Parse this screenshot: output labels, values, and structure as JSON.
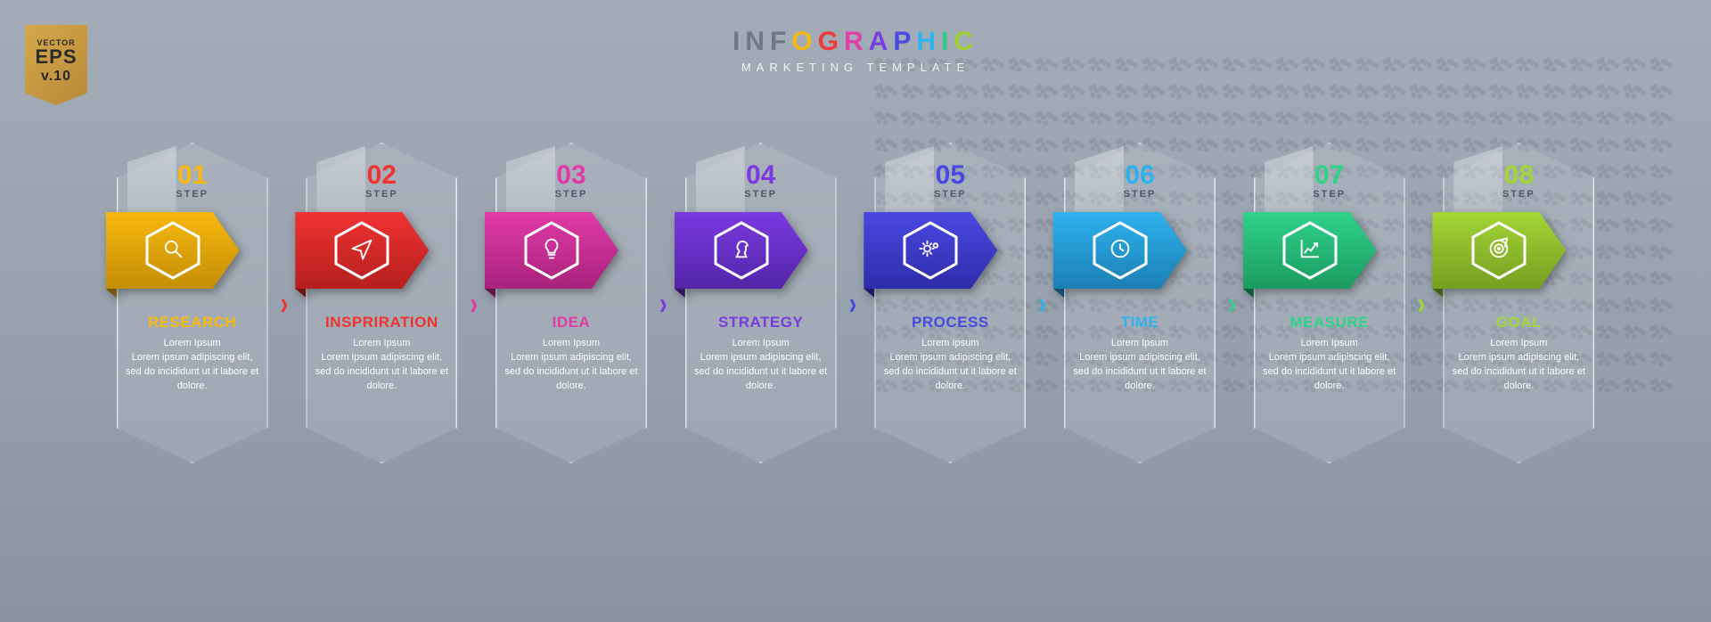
{
  "badge": {
    "vector": "VECTOR",
    "eps": "EPS",
    "ver": "v.10"
  },
  "header": {
    "title_letters": [
      {
        "ch": "I",
        "c": "#707884"
      },
      {
        "ch": "N",
        "c": "#707884"
      },
      {
        "ch": "F",
        "c": "#707884"
      },
      {
        "ch": "O",
        "c": "#f5b816"
      },
      {
        "ch": "G",
        "c": "#ef3b3b"
      },
      {
        "ch": "R",
        "c": "#e23fa8"
      },
      {
        "ch": "A",
        "c": "#7a3fe2"
      },
      {
        "ch": "P",
        "c": "#4a4ae2"
      },
      {
        "ch": "H",
        "c": "#2fb4ee"
      },
      {
        "ch": "I",
        "c": "#35c98a"
      },
      {
        "ch": "C",
        "c": "#9ed033"
      }
    ],
    "subtitle": "MARKETING  TEMPLATE"
  },
  "step_word": "STEP",
  "lorem": "Lorem Ipsum\nLorem ipsum adipiscing elit, sed do incididunt ut it labore et dolore.",
  "steps": [
    {
      "num": "01",
      "title": "RESEARCH",
      "color": "#f7b80f",
      "dark": "#c48e06",
      "icon": "search"
    },
    {
      "num": "02",
      "title": "INSPRIRATION",
      "color": "#ef3332",
      "dark": "#b51f1e",
      "icon": "plane"
    },
    {
      "num": "03",
      "title": "IDEA",
      "color": "#e13aa7",
      "dark": "#a8227b",
      "icon": "bulb"
    },
    {
      "num": "04",
      "title": "STRATEGY",
      "color": "#7a3ae0",
      "dark": "#5424a8",
      "icon": "knight"
    },
    {
      "num": "05",
      "title": "PROCESS",
      "color": "#4a48e2",
      "dark": "#2e2ca8",
      "icon": "gears"
    },
    {
      "num": "06",
      "title": "TIME",
      "color": "#2fb1ee",
      "dark": "#1a7fb3",
      "icon": "clock"
    },
    {
      "num": "07",
      "title": "MEASURE",
      "color": "#2fd28a",
      "dark": "#1c9a62",
      "icon": "chart"
    },
    {
      "num": "08",
      "title": "GOAL",
      "color": "#a3d537",
      "dark": "#769e20",
      "icon": "target"
    }
  ]
}
